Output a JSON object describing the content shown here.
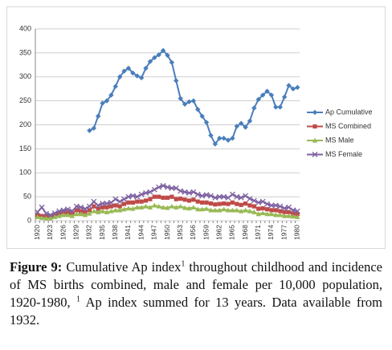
{
  "chart_data": {
    "type": "line",
    "categories": [
      "1920",
      null,
      null,
      "1923",
      null,
      null,
      "1926",
      null,
      null,
      "1929",
      null,
      null,
      "1932",
      null,
      null,
      "1935",
      null,
      null,
      "1938",
      null,
      null,
      "1941",
      null,
      null,
      "1944",
      null,
      null,
      "1947",
      null,
      null,
      "1950",
      null,
      null,
      "1953",
      null,
      null,
      "1956",
      null,
      null,
      "1959",
      null,
      null,
      "1962",
      null,
      null,
      "1965",
      null,
      null,
      "1968",
      null,
      null,
      "1971",
      null,
      null,
      "1974",
      null,
      null,
      "1977",
      null,
      null,
      "1980"
    ],
    "series": [
      {
        "name": "Ap Cumulative",
        "color": "#4a7ebb",
        "marker": "diamond",
        "values": [
          null,
          null,
          null,
          null,
          null,
          null,
          null,
          null,
          null,
          null,
          null,
          null,
          188,
          193,
          218,
          245,
          250,
          262,
          280,
          300,
          312,
          318,
          308,
          302,
          298,
          318,
          332,
          340,
          346,
          355,
          345,
          330,
          292,
          255,
          243,
          248,
          250,
          232,
          218,
          205,
          178,
          160,
          172,
          172,
          168,
          172,
          197,
          203,
          195,
          208,
          235,
          253,
          262,
          270,
          262,
          237,
          237,
          258,
          282,
          275,
          278
        ]
      },
      {
        "name": "MS Combined",
        "color": "#be4b48",
        "marker": "square",
        "values": [
          12,
          10,
          10,
          8,
          12,
          15,
          18,
          17,
          15,
          22,
          20,
          18,
          22,
          30,
          25,
          28,
          28,
          30,
          32,
          30,
          35,
          38,
          38,
          40,
          40,
          42,
          45,
          50,
          50,
          48,
          48,
          50,
          45,
          46,
          44,
          42,
          44,
          40,
          38,
          38,
          36,
          34,
          35,
          36,
          35,
          38,
          35,
          33,
          36,
          32,
          30,
          25,
          26,
          24,
          22,
          22,
          20,
          18,
          18,
          15,
          14
        ]
      },
      {
        "name": "MS Male",
        "color": "#98b954",
        "marker": "triangle",
        "values": [
          8,
          6,
          5,
          5,
          8,
          10,
          12,
          12,
          10,
          14,
          14,
          12,
          15,
          20,
          18,
          20,
          18,
          20,
          22,
          22,
          24,
          26,
          25,
          28,
          28,
          30,
          28,
          32,
          30,
          28,
          27,
          30,
          28,
          30,
          27,
          26,
          28,
          24,
          24,
          25,
          22,
          22,
          22,
          24,
          22,
          22,
          22,
          20,
          22,
          20,
          18,
          14,
          16,
          14,
          14,
          12,
          12,
          10,
          10,
          9,
          8
        ]
      },
      {
        "name": "MS Female",
        "color": "#7d60a0",
        "marker": "cross",
        "values": [
          18,
          28,
          15,
          12,
          16,
          20,
          22,
          24,
          20,
          30,
          28,
          25,
          30,
          40,
          32,
          36,
          36,
          38,
          45,
          40,
          45,
          50,
          52,
          50,
          55,
          58,
          60,
          65,
          70,
          73,
          70,
          68,
          68,
          62,
          60,
          58,
          60,
          55,
          52,
          54,
          52,
          48,
          50,
          50,
          48,
          55,
          50,
          48,
          52,
          46,
          42,
          38,
          40,
          35,
          32,
          32,
          30,
          26,
          28,
          22,
          20
        ]
      }
    ],
    "ylim": [
      0,
      400
    ],
    "yticks": [
      0,
      50,
      100,
      150,
      200,
      250,
      300,
      350,
      400
    ],
    "grid": true,
    "legend": "right"
  },
  "caption": {
    "label": "Figure 9:",
    "parts": [
      "Cumulative Ap index",
      "1",
      " throughout childhood and incidence of MS births combined, male and female per 10,000 population, 1920-1980, ",
      "1",
      " Ap index summed for 13 years. Data available from 1932."
    ]
  }
}
